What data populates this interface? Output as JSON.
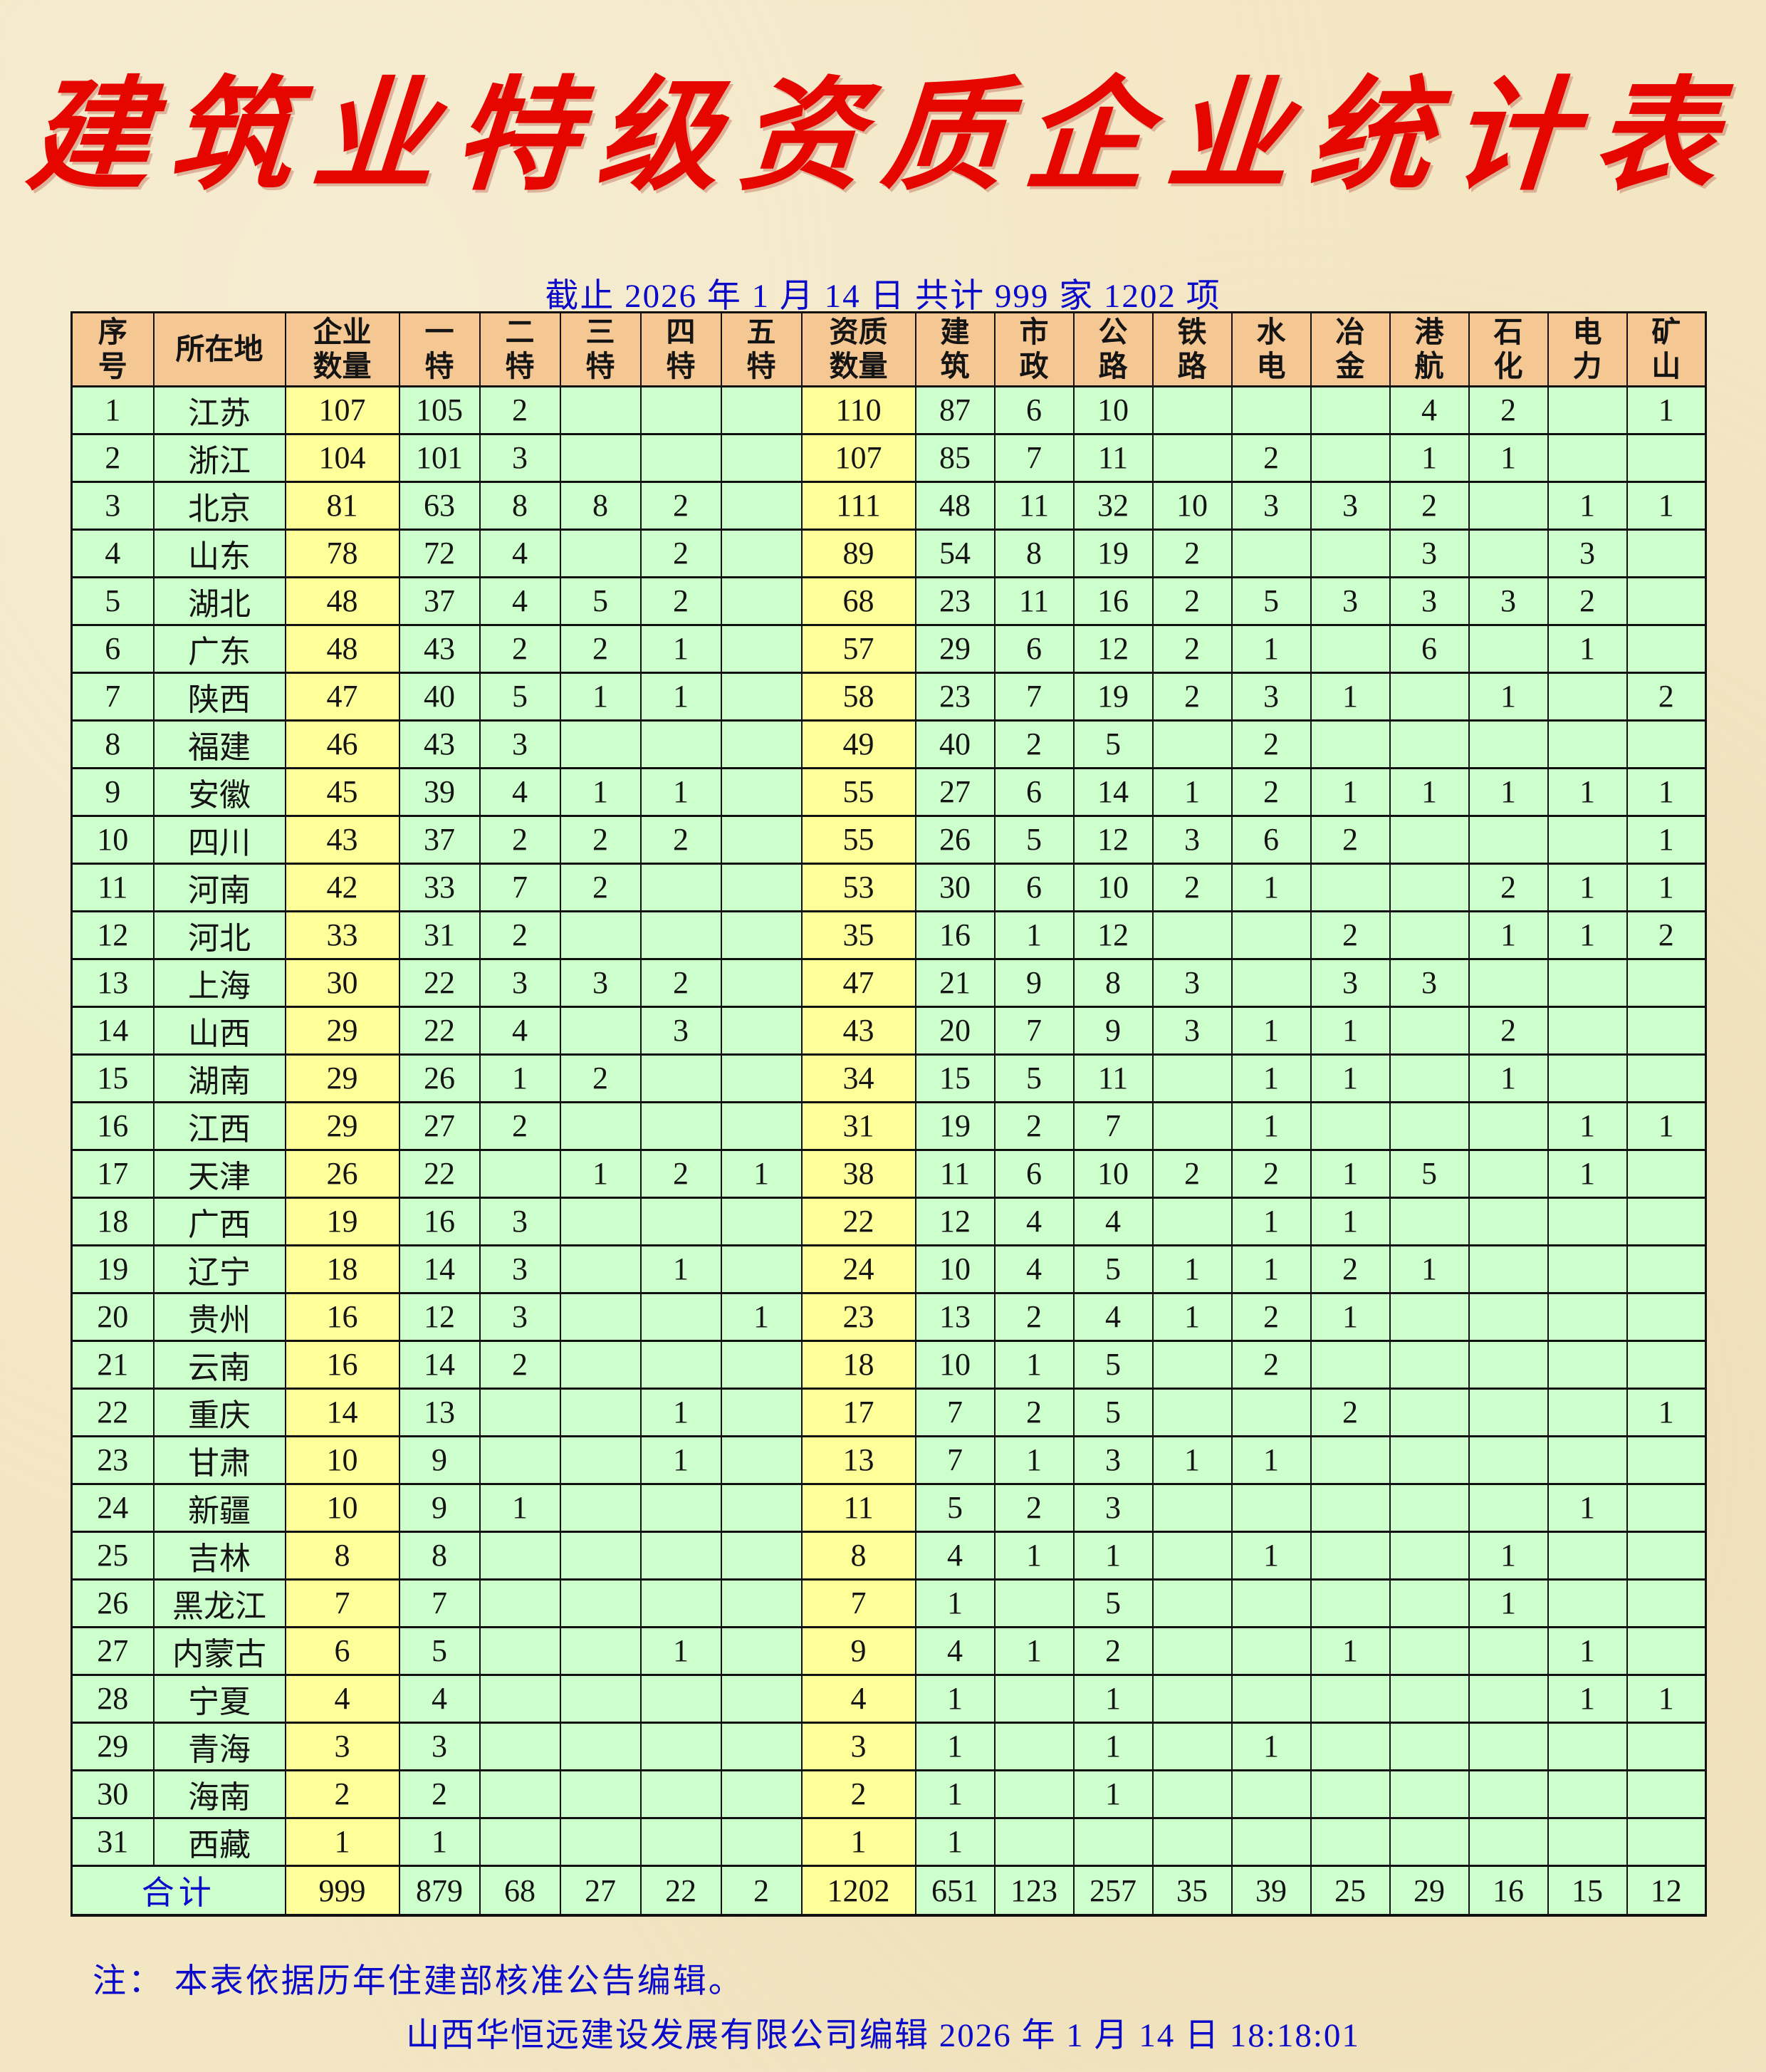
{
  "title": "建筑业特级资质企业统计表",
  "subtitle": "截止 2026 年 1 月 14 日  共计 999 家 1202 项",
  "table": {
    "headers": [
      [
        "序",
        "号"
      ],
      [
        "所在地"
      ],
      [
        "企业",
        "数量"
      ],
      [
        "一",
        "特"
      ],
      [
        "二",
        "特"
      ],
      [
        "三",
        "特"
      ],
      [
        "四",
        "特"
      ],
      [
        "五",
        "特"
      ],
      [
        "资质",
        "数量"
      ],
      [
        "建",
        "筑"
      ],
      [
        "市",
        "政"
      ],
      [
        "公",
        "路"
      ],
      [
        "铁",
        "路"
      ],
      [
        "水",
        "电"
      ],
      [
        "冶",
        "金"
      ],
      [
        "港",
        "航"
      ],
      [
        "石",
        "化"
      ],
      [
        "电",
        "力"
      ],
      [
        "矿",
        "山"
      ]
    ],
    "rows": [
      [
        "1",
        "江苏",
        "107",
        "105",
        "2",
        "",
        "",
        "",
        "110",
        "87",
        "6",
        "10",
        "",
        "",
        "",
        "4",
        "2",
        "",
        "1"
      ],
      [
        "2",
        "浙江",
        "104",
        "101",
        "3",
        "",
        "",
        "",
        "107",
        "85",
        "7",
        "11",
        "",
        "2",
        "",
        "1",
        "1",
        "",
        ""
      ],
      [
        "3",
        "北京",
        "81",
        "63",
        "8",
        "8",
        "2",
        "",
        "111",
        "48",
        "11",
        "32",
        "10",
        "3",
        "3",
        "2",
        "",
        "1",
        "1"
      ],
      [
        "4",
        "山东",
        "78",
        "72",
        "4",
        "",
        "2",
        "",
        "89",
        "54",
        "8",
        "19",
        "2",
        "",
        "",
        "3",
        "",
        "3",
        ""
      ],
      [
        "5",
        "湖北",
        "48",
        "37",
        "4",
        "5",
        "2",
        "",
        "68",
        "23",
        "11",
        "16",
        "2",
        "5",
        "3",
        "3",
        "3",
        "2",
        ""
      ],
      [
        "6",
        "广东",
        "48",
        "43",
        "2",
        "2",
        "1",
        "",
        "57",
        "29",
        "6",
        "12",
        "2",
        "1",
        "",
        "6",
        "",
        "1",
        ""
      ],
      [
        "7",
        "陕西",
        "47",
        "40",
        "5",
        "1",
        "1",
        "",
        "58",
        "23",
        "7",
        "19",
        "2",
        "3",
        "1",
        "",
        "1",
        "",
        "2"
      ],
      [
        "8",
        "福建",
        "46",
        "43",
        "3",
        "",
        "",
        "",
        "49",
        "40",
        "2",
        "5",
        "",
        "2",
        "",
        "",
        "",
        "",
        ""
      ],
      [
        "9",
        "安徽",
        "45",
        "39",
        "4",
        "1",
        "1",
        "",
        "55",
        "27",
        "6",
        "14",
        "1",
        "2",
        "1",
        "1",
        "1",
        "1",
        "1"
      ],
      [
        "10",
        "四川",
        "43",
        "37",
        "2",
        "2",
        "2",
        "",
        "55",
        "26",
        "5",
        "12",
        "3",
        "6",
        "2",
        "",
        "",
        "",
        "1"
      ],
      [
        "11",
        "河南",
        "42",
        "33",
        "7",
        "2",
        "",
        "",
        "53",
        "30",
        "6",
        "10",
        "2",
        "1",
        "",
        "",
        "2",
        "1",
        "1"
      ],
      [
        "12",
        "河北",
        "33",
        "31",
        "2",
        "",
        "",
        "",
        "35",
        "16",
        "1",
        "12",
        "",
        "",
        "2",
        "",
        "1",
        "1",
        "2"
      ],
      [
        "13",
        "上海",
        "30",
        "22",
        "3",
        "3",
        "2",
        "",
        "47",
        "21",
        "9",
        "8",
        "3",
        "",
        "3",
        "3",
        "",
        "",
        ""
      ],
      [
        "14",
        "山西",
        "29",
        "22",
        "4",
        "",
        "3",
        "",
        "43",
        "20",
        "7",
        "9",
        "3",
        "1",
        "1",
        "",
        "2",
        "",
        ""
      ],
      [
        "15",
        "湖南",
        "29",
        "26",
        "1",
        "2",
        "",
        "",
        "34",
        "15",
        "5",
        "11",
        "",
        "1",
        "1",
        "",
        "1",
        "",
        ""
      ],
      [
        "16",
        "江西",
        "29",
        "27",
        "2",
        "",
        "",
        "",
        "31",
        "19",
        "2",
        "7",
        "",
        "1",
        "",
        "",
        "",
        "1",
        "1"
      ],
      [
        "17",
        "天津",
        "26",
        "22",
        "",
        "1",
        "2",
        "1",
        "38",
        "11",
        "6",
        "10",
        "2",
        "2",
        "1",
        "5",
        "",
        "1",
        ""
      ],
      [
        "18",
        "广西",
        "19",
        "16",
        "3",
        "",
        "",
        "",
        "22",
        "12",
        "4",
        "4",
        "",
        "1",
        "1",
        "",
        "",
        "",
        ""
      ],
      [
        "19",
        "辽宁",
        "18",
        "14",
        "3",
        "",
        "1",
        "",
        "24",
        "10",
        "4",
        "5",
        "1",
        "1",
        "2",
        "1",
        "",
        "",
        ""
      ],
      [
        "20",
        "贵州",
        "16",
        "12",
        "3",
        "",
        "",
        "1",
        "23",
        "13",
        "2",
        "4",
        "1",
        "2",
        "1",
        "",
        "",
        "",
        ""
      ],
      [
        "21",
        "云南",
        "16",
        "14",
        "2",
        "",
        "",
        "",
        "18",
        "10",
        "1",
        "5",
        "",
        "2",
        "",
        "",
        "",
        "",
        ""
      ],
      [
        "22",
        "重庆",
        "14",
        "13",
        "",
        "",
        "1",
        "",
        "17",
        "7",
        "2",
        "5",
        "",
        "",
        "2",
        "",
        "",
        "",
        "1"
      ],
      [
        "23",
        "甘肃",
        "10",
        "9",
        "",
        "",
        "1",
        "",
        "13",
        "7",
        "1",
        "3",
        "1",
        "1",
        "",
        "",
        "",
        "",
        ""
      ],
      [
        "24",
        "新疆",
        "10",
        "9",
        "1",
        "",
        "",
        "",
        "11",
        "5",
        "2",
        "3",
        "",
        "",
        "",
        "",
        "",
        "1",
        ""
      ],
      [
        "25",
        "吉林",
        "8",
        "8",
        "",
        "",
        "",
        "",
        "8",
        "4",
        "1",
        "1",
        "",
        "1",
        "",
        "",
        "1",
        "",
        ""
      ],
      [
        "26",
        "黑龙江",
        "7",
        "7",
        "",
        "",
        "",
        "",
        "7",
        "1",
        "",
        "5",
        "",
        "",
        "",
        "",
        "1",
        "",
        ""
      ],
      [
        "27",
        "内蒙古",
        "6",
        "5",
        "",
        "",
        "1",
        "",
        "9",
        "4",
        "1",
        "2",
        "",
        "",
        "1",
        "",
        "",
        "1",
        ""
      ],
      [
        "28",
        "宁夏",
        "4",
        "4",
        "",
        "",
        "",
        "",
        "4",
        "1",
        "",
        "1",
        "",
        "",
        "",
        "",
        "",
        "1",
        "1"
      ],
      [
        "29",
        "青海",
        "3",
        "3",
        "",
        "",
        "",
        "",
        "3",
        "1",
        "",
        "1",
        "",
        "1",
        "",
        "",
        "",
        "",
        ""
      ],
      [
        "30",
        "海南",
        "2",
        "2",
        "",
        "",
        "",
        "",
        "2",
        "1",
        "",
        "1",
        "",
        "",
        "",
        "",
        "",
        "",
        ""
      ],
      [
        "31",
        "西藏",
        "1",
        "1",
        "",
        "",
        "",
        "",
        "1",
        "1",
        "",
        "",
        "",
        "",
        "",
        "",
        "",
        "",
        ""
      ]
    ],
    "total": {
      "label": "合计",
      "values": [
        "999",
        "879",
        "68",
        "27",
        "22",
        "2",
        "1202",
        "651",
        "123",
        "257",
        "35",
        "39",
        "25",
        "29",
        "16",
        "15",
        "12"
      ]
    }
  },
  "note": "注： 本表依据历年住建部核准公告编辑。",
  "footer": "山西华恒远建设发展有限公司编辑  2026 年 1 月 14 日 18:18:01",
  "colors": {
    "title_red": "#e50600",
    "text_blue": "#0a0ac8",
    "header_bg": "#f5c793",
    "cell_green": "#ccffcc",
    "cell_yellow": "#ffff99",
    "border_black": "#111111",
    "page_bg": "#f3e6c3"
  }
}
